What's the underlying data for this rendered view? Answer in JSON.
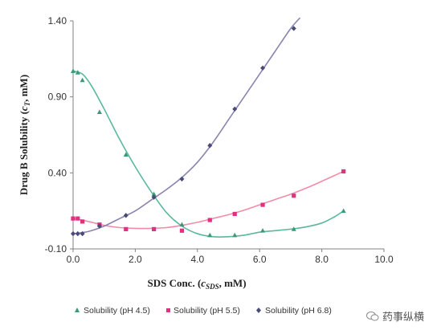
{
  "chart_data": {
    "type": "scatter",
    "ylabel": {
      "prefix": "Drug B Solubility (",
      "var": "c",
      "sub": "T",
      "suffix": ", mM)"
    },
    "xlabel": {
      "prefix": "SDS Conc. (",
      "var": "c",
      "sub": "SDS",
      "suffix": ", mM)"
    },
    "xlim": [
      0,
      10
    ],
    "ylim": [
      -0.1,
      1.4
    ],
    "xticks": [
      "0.0",
      "2.0",
      "4.0",
      "6.0",
      "8.0",
      "10.0"
    ],
    "yticks": [
      "-0.10",
      "0.40",
      "0.90",
      "1.40"
    ],
    "xtick_values": [
      0,
      2,
      4,
      6,
      8,
      10
    ],
    "ytick_values": [
      -0.1,
      0.4,
      0.9,
      1.4
    ],
    "legend_position": "bottom",
    "series": [
      {
        "name": "Solubility (pH 4.5)",
        "marker": "triangle",
        "marker_color": "#3a9a78",
        "line_color": "#5bb8a0",
        "x": [
          0.0,
          0.15,
          0.3,
          0.85,
          1.7,
          2.6,
          3.5,
          4.4,
          5.2,
          6.1,
          7.1,
          8.7
        ],
        "y": [
          1.07,
          1.06,
          1.01,
          0.8,
          0.52,
          0.26,
          0.06,
          -0.01,
          -0.01,
          0.02,
          0.03,
          0.15
        ],
        "curve_x": [
          0.0,
          0.3,
          0.6,
          1.0,
          1.5,
          2.0,
          2.5,
          3.0,
          3.5,
          4.0,
          4.5,
          5.0,
          5.5,
          6.0,
          6.5,
          7.0,
          7.5,
          8.0,
          8.4,
          8.7
        ],
        "curve_y": [
          1.07,
          1.05,
          0.97,
          0.82,
          0.62,
          0.44,
          0.28,
          0.14,
          0.05,
          0.0,
          -0.02,
          -0.02,
          -0.01,
          0.01,
          0.02,
          0.03,
          0.045,
          0.07,
          0.11,
          0.15
        ]
      },
      {
        "name": "Solubility (pH 5.5)",
        "marker": "square",
        "marker_color": "#e0307f",
        "line_color": "#f08caa",
        "x": [
          0.0,
          0.15,
          0.3,
          0.85,
          1.7,
          2.6,
          3.5,
          4.4,
          5.2,
          6.1,
          7.1,
          8.7
        ],
        "y": [
          0.1,
          0.1,
          0.08,
          0.06,
          0.03,
          0.03,
          0.02,
          0.09,
          0.13,
          0.19,
          0.25,
          0.41
        ],
        "curve_x": [
          0.0,
          0.5,
          1.0,
          1.5,
          2.0,
          2.5,
          3.0,
          3.5,
          4.0,
          4.5,
          5.0,
          5.5,
          6.0,
          6.5,
          7.0,
          7.5,
          8.0,
          8.7
        ],
        "curve_y": [
          0.1,
          0.08,
          0.055,
          0.04,
          0.035,
          0.035,
          0.04,
          0.055,
          0.075,
          0.1,
          0.125,
          0.155,
          0.19,
          0.225,
          0.26,
          0.3,
          0.345,
          0.41
        ]
      },
      {
        "name": "Solubility (pH 6.8)",
        "marker": "diamond",
        "marker_color": "#4a4a78",
        "line_color": "#8a84b0",
        "x": [
          0.0,
          0.15,
          0.3,
          0.85,
          1.7,
          2.6,
          3.5,
          4.4,
          5.2,
          6.1,
          7.1
        ],
        "y": [
          0.0,
          0.0,
          0.0,
          0.05,
          0.12,
          0.24,
          0.36,
          0.58,
          0.82,
          1.09,
          1.35
        ],
        "curve_x": [
          0.0,
          0.5,
          1.0,
          1.5,
          2.0,
          2.5,
          3.0,
          3.5,
          4.0,
          4.5,
          5.0,
          5.5,
          6.0,
          6.5,
          7.0,
          7.3
        ],
        "curve_y": [
          0.0,
          0.015,
          0.05,
          0.1,
          0.15,
          0.22,
          0.29,
          0.37,
          0.47,
          0.6,
          0.75,
          0.9,
          1.05,
          1.2,
          1.35,
          1.42
        ]
      }
    ]
  },
  "watermark": {
    "text": "药事纵横",
    "icon": "wechat-icon"
  }
}
